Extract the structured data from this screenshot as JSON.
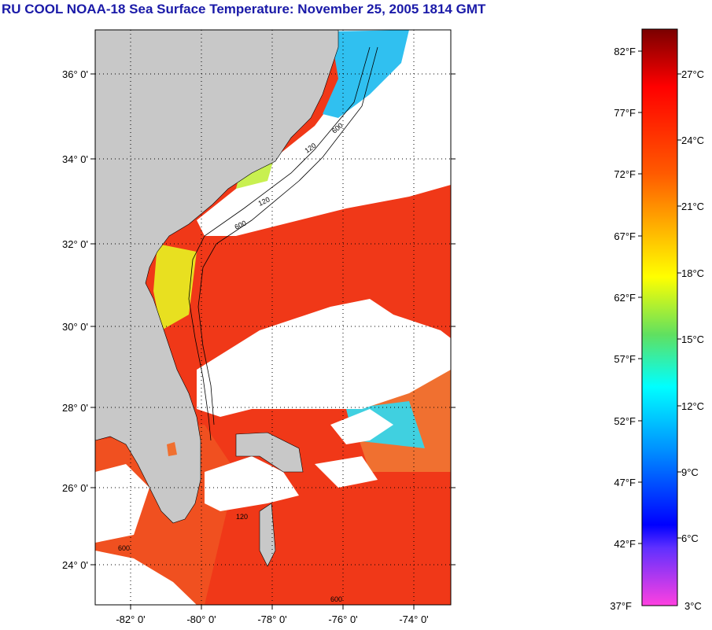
{
  "title": "RU COOL  NOAA-18  Sea Surface Temperature:  November 25, 2005 1814 GMT",
  "map": {
    "lat_labels": [
      "36° 0'",
      "34° 0'",
      "32° 0'",
      "30° 0'",
      "28° 0'",
      "26° 0'",
      "24° 0'"
    ],
    "lon_labels": [
      "-82° 0'",
      "-80° 0'",
      "-78° 0'",
      "-76° 0'",
      "-74° 0'"
    ],
    "contour_labels": [
      "120",
      "600"
    ],
    "colors": {
      "land": "#c8c8c8",
      "cloud": "#ffffff",
      "warm_sst": "#f03010"
    }
  },
  "colorbar": {
    "fahrenheit_labels": [
      "82°F",
      "77°F",
      "72°F",
      "67°F",
      "62°F",
      "57°F",
      "52°F",
      "47°F",
      "42°F",
      "37°F"
    ],
    "celsius_labels": [
      "27°C",
      "24°C",
      "21°C",
      "18°C",
      "15°C",
      "12°C",
      "9°C",
      "6°C",
      "3°C"
    ],
    "colors_top_to_bottom": [
      "#7a0000",
      "#ff0000",
      "#ff7a00",
      "#ffff00",
      "#70e040",
      "#00ffff",
      "#0080ff",
      "#0000ff",
      "#ff40e0"
    ]
  }
}
